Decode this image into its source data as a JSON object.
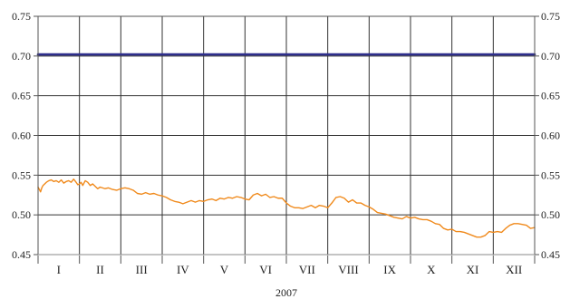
{
  "chart_data": {
    "type": "line",
    "title": "",
    "xlabel": "2007",
    "ylabel": "",
    "ylim": [
      0.45,
      0.75
    ],
    "yticks": [
      "0.45",
      "0.50",
      "0.55",
      "0.60",
      "0.65",
      "0.70",
      "0.75"
    ],
    "categories": [
      "I",
      "II",
      "III",
      "IV",
      "V",
      "VI",
      "VII",
      "VIII",
      "IX",
      "X",
      "XI",
      "XII"
    ],
    "grid": true,
    "legend": "none",
    "colors": {
      "reference": "#2e2e8c",
      "rate": "#f08a1c",
      "grid": "#333333",
      "axis": "#555555"
    },
    "series": [
      {
        "color": "#2e2e8c",
        "x": [
          0,
          12
        ],
        "values": [
          0.702,
          0.702
        ]
      },
      {
        "color": "#f08a1c",
        "x": [
          0.0,
          0.03,
          0.06,
          0.09,
          0.12,
          0.16,
          0.2,
          0.26,
          0.32,
          0.38,
          0.44,
          0.5,
          0.56,
          0.62,
          0.68,
          0.74,
          0.8,
          0.86,
          0.92,
          0.96,
          1.0,
          1.04,
          1.08,
          1.14,
          1.2,
          1.26,
          1.32,
          1.38,
          1.44,
          1.5,
          1.56,
          1.62,
          1.7,
          1.8,
          1.9,
          2.0,
          2.1,
          2.2,
          2.3,
          2.4,
          2.5,
          2.6,
          2.7,
          2.8,
          2.9,
          3.0,
          3.1,
          3.2,
          3.3,
          3.4,
          3.5,
          3.6,
          3.7,
          3.8,
          3.9,
          4.0,
          4.1,
          4.2,
          4.3,
          4.4,
          4.5,
          4.6,
          4.7,
          4.8,
          4.9,
          5.0,
          5.1,
          5.2,
          5.3,
          5.4,
          5.5,
          5.6,
          5.7,
          5.8,
          5.9,
          6.0,
          6.1,
          6.2,
          6.3,
          6.4,
          6.5,
          6.6,
          6.7,
          6.8,
          6.9,
          7.0,
          7.1,
          7.2,
          7.3,
          7.4,
          7.5,
          7.6,
          7.7,
          7.8,
          7.9,
          8.0,
          8.1,
          8.2,
          8.3,
          8.4,
          8.5,
          8.6,
          8.7,
          8.8,
          8.9,
          9.0,
          9.1,
          9.2,
          9.3,
          9.4,
          9.5,
          9.6,
          9.7,
          9.8,
          9.9,
          10.0,
          10.1,
          10.2,
          10.3,
          10.4,
          10.5,
          10.6,
          10.7,
          10.8,
          10.9,
          11.0,
          11.1,
          11.2,
          11.3,
          11.4,
          11.5,
          11.6,
          11.7,
          11.8,
          11.9,
          12.0
        ],
        "values": [
          0.535,
          0.532,
          0.529,
          0.534,
          0.537,
          0.539,
          0.541,
          0.543,
          0.544,
          0.542,
          0.543,
          0.541,
          0.544,
          0.54,
          0.542,
          0.543,
          0.541,
          0.545,
          0.541,
          0.538,
          0.539,
          0.541,
          0.537,
          0.543,
          0.541,
          0.537,
          0.539,
          0.536,
          0.533,
          0.535,
          0.534,
          0.533,
          0.534,
          0.532,
          0.531,
          0.533,
          0.534,
          0.533,
          0.531,
          0.527,
          0.526,
          0.528,
          0.526,
          0.527,
          0.525,
          0.524,
          0.522,
          0.519,
          0.517,
          0.516,
          0.514,
          0.516,
          0.518,
          0.516,
          0.518,
          0.517,
          0.519,
          0.52,
          0.518,
          0.521,
          0.52,
          0.522,
          0.521,
          0.523,
          0.522,
          0.52,
          0.519,
          0.525,
          0.527,
          0.524,
          0.526,
          0.522,
          0.523,
          0.521,
          0.521,
          0.515,
          0.511,
          0.509,
          0.509,
          0.508,
          0.51,
          0.512,
          0.509,
          0.512,
          0.511,
          0.509,
          0.515,
          0.522,
          0.523,
          0.521,
          0.516,
          0.519,
          0.515,
          0.515,
          0.512,
          0.51,
          0.507,
          0.503,
          0.502,
          0.501,
          0.499,
          0.497,
          0.496,
          0.495,
          0.498,
          0.496,
          0.497,
          0.495,
          0.494,
          0.494,
          0.492,
          0.489,
          0.488,
          0.483,
          0.481,
          0.482,
          0.479,
          0.479,
          0.478,
          0.476,
          0.474,
          0.472,
          0.472,
          0.474,
          0.479,
          0.478,
          0.479,
          0.478,
          0.483,
          0.487,
          0.489,
          0.489,
          0.488,
          0.487,
          0.483,
          0.484
        ]
      }
    ]
  }
}
